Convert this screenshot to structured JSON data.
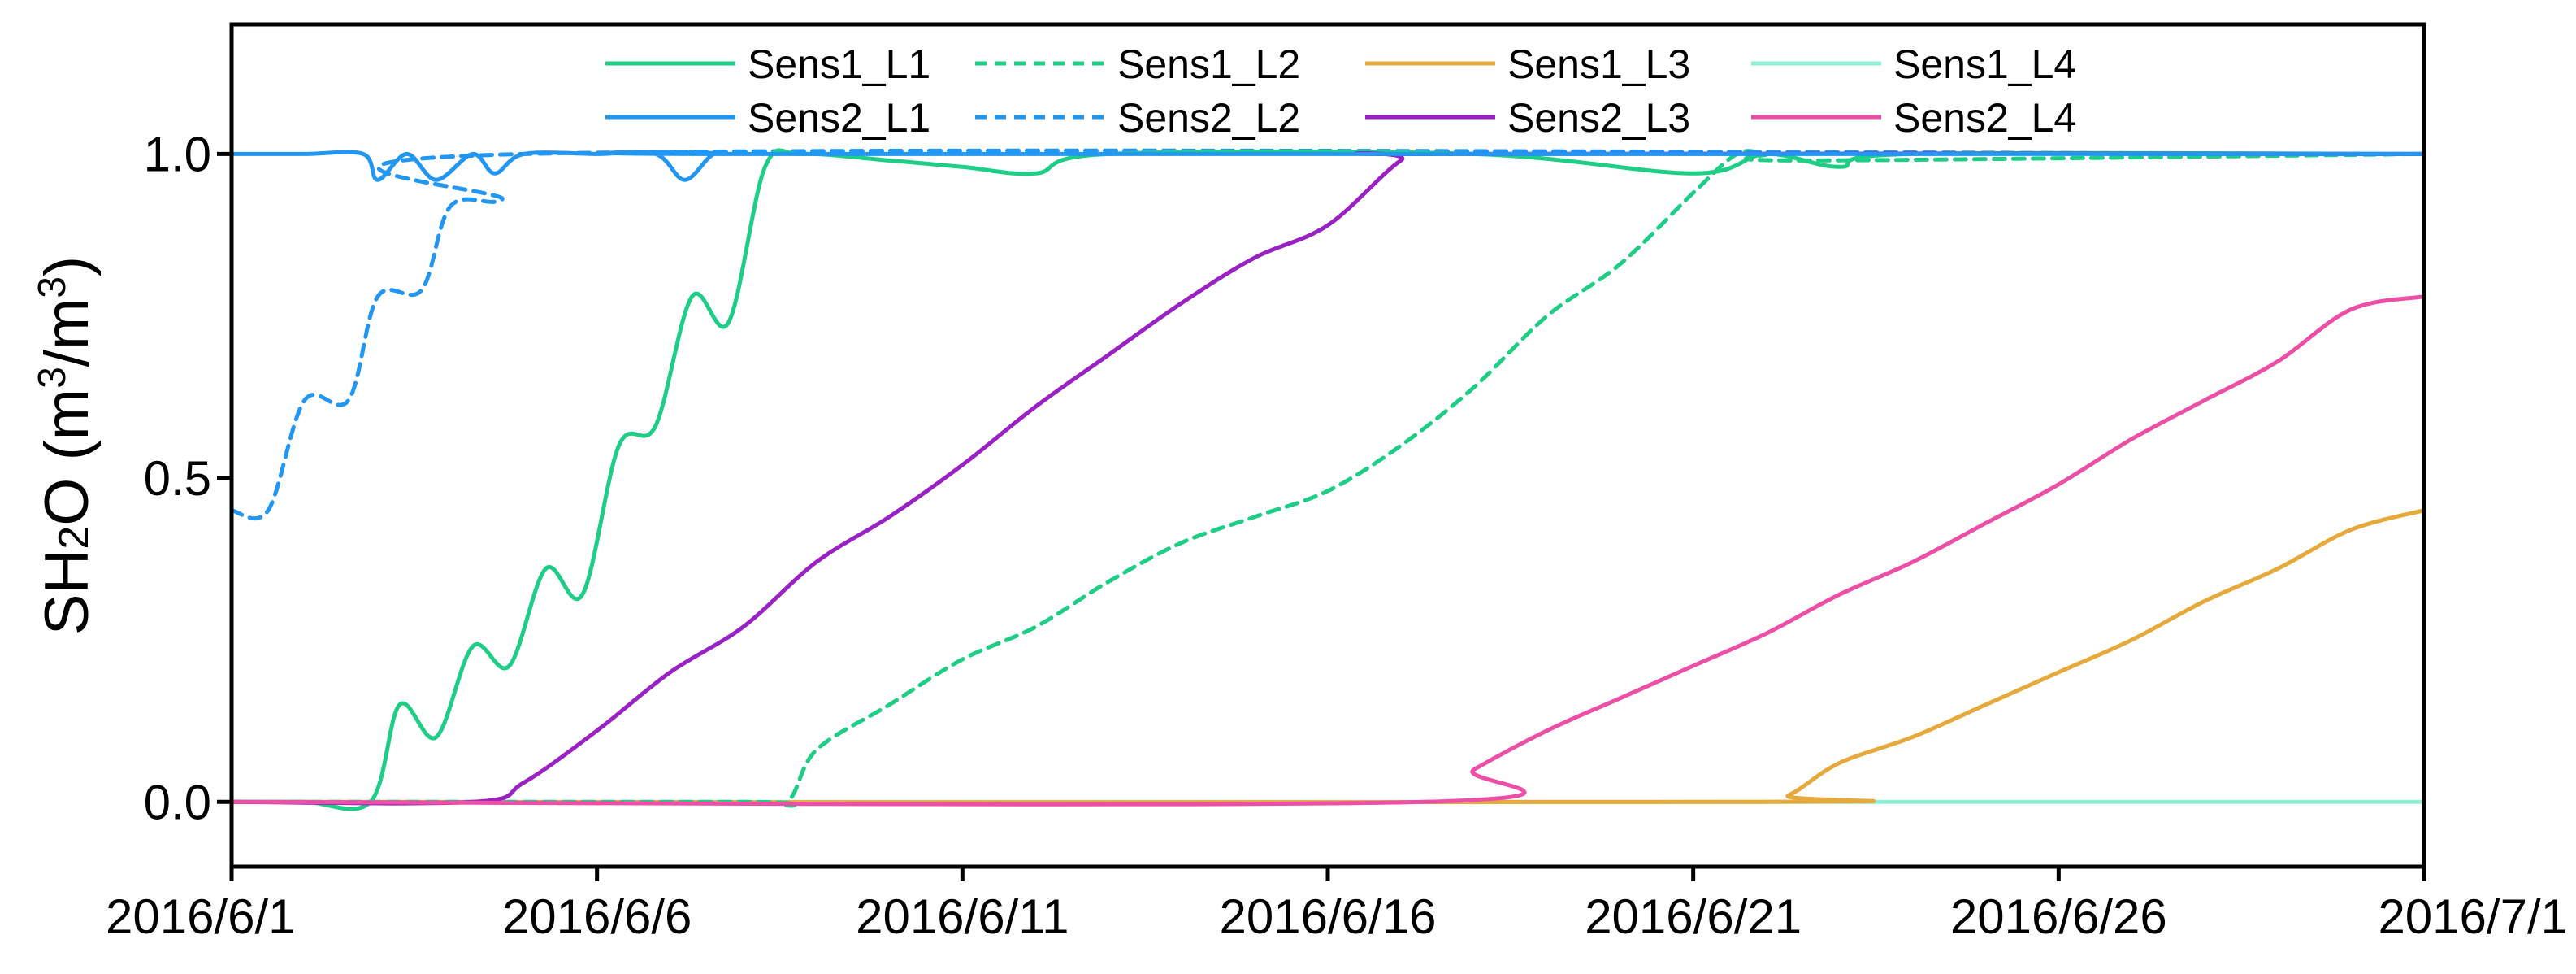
{
  "chart_data": {
    "type": "line",
    "title": "",
    "ylabel": {
      "prefix": "SH",
      "subscript": "2",
      "mid": "O (m",
      "sup1": "3",
      "mid2": "/m",
      "sup2": "3",
      "suffix": ")"
    },
    "xlabel": "",
    "x_unit": "date",
    "xlim": [
      "2016-06-01",
      "2016-07-01"
    ],
    "ylim": [
      -0.1,
      1.2
    ],
    "x_ticks": [
      "2016/6/1",
      "2016/6/6",
      "2016/6/11",
      "2016/6/16",
      "2016/6/21",
      "2016/6/26",
      "2016/7/1"
    ],
    "y_ticks": [
      "0.0",
      "0.5",
      "1.0"
    ],
    "y_tick_values": [
      0,
      0.5,
      1.0
    ],
    "grid": false,
    "legend_position": "top",
    "series": [
      {
        "name": "Sens1_L1",
        "color": "#1fce86",
        "dash": "solid",
        "x": [
          "2016-06-01",
          "2016-06-02",
          "2016-06-02.9",
          "2016-06-03.3",
          "2016-06-03.8",
          "2016-06-04.3",
          "2016-06-04.8",
          "2016-06-05.3",
          "2016-06-05.8",
          "2016-06-06.3",
          "2016-06-06.8",
          "2016-06-07.3",
          "2016-06-07.8",
          "2016-06-08.3",
          "2016-06-08.8",
          "2016-06-10",
          "2016-06-11",
          "2016-06-12",
          "2016-06-13",
          "2016-06-18",
          "2016-06-21",
          "2016-06-22",
          "2016-06-23",
          "2016-06-24",
          "2016-07-01"
        ],
        "y": [
          0,
          0,
          0,
          0.15,
          0.1,
          0.24,
          0.21,
          0.36,
          0.32,
          0.55,
          0.58,
          0.78,
          0.74,
          0.98,
          1.0,
          0.99,
          0.98,
          0.97,
          1.0,
          1.0,
          0.97,
          1.0,
          0.98,
          1.0,
          1.0
        ]
      },
      {
        "name": "Sens1_L2",
        "color": "#1fce86",
        "dash": "dash",
        "x": [
          "2016-06-01",
          "2016-06-08",
          "2016-06-08.6",
          "2016-06-09",
          "2016-06-10",
          "2016-06-11",
          "2016-06-12",
          "2016-06-13",
          "2016-06-14",
          "2016-06-15",
          "2016-06-16",
          "2016-06-17",
          "2016-06-18",
          "2016-06-19",
          "2016-06-20",
          "2016-06-21",
          "2016-06-21.6",
          "2016-06-22",
          "2016-06-22.5",
          "2016-07-01"
        ],
        "y": [
          0,
          0,
          0,
          0.08,
          0.15,
          0.22,
          0.27,
          0.34,
          0.4,
          0.44,
          0.48,
          0.55,
          0.64,
          0.75,
          0.83,
          0.94,
          1.0,
          1.0,
          0.99,
          1.0
        ]
      },
      {
        "name": "Sens1_L3",
        "color": "#e5a93c",
        "dash": "solid",
        "x": [
          "2016-06-01",
          "2016-06-21.8",
          "2016-06-22.3",
          "2016-06-23",
          "2016-06-24",
          "2016-06-25",
          "2016-06-26",
          "2016-06-27",
          "2016-06-28",
          "2016-06-29",
          "2016-06-30",
          "2016-07-01"
        ],
        "y": [
          0,
          0,
          0.01,
          0.06,
          0.1,
          0.15,
          0.2,
          0.25,
          0.31,
          0.36,
          0.42,
          0.45
        ]
      },
      {
        "name": "Sens1_L4",
        "color": "#8ff0d6",
        "dash": "solid",
        "x": [
          "2016-06-01",
          "2016-07-01"
        ],
        "y": [
          0,
          0
        ]
      },
      {
        "name": "Sens2_L1",
        "color": "#2196f3",
        "dash": "solid",
        "x": [
          "2016-06-01",
          "2016-06-02",
          "2016-06-02.8",
          "2016-06-03",
          "2016-06-03.4",
          "2016-06-03.8",
          "2016-06-04.3",
          "2016-06-04.6",
          "2016-06-05",
          "2016-06-06",
          "2016-06-06.8",
          "2016-06-07.2",
          "2016-06-07.6",
          "2016-06-08",
          "2016-07-01"
        ],
        "y": [
          1.0,
          1.0,
          1.0,
          0.96,
          1.0,
          0.96,
          1.0,
          0.97,
          1.0,
          1.0,
          1.0,
          0.96,
          1.0,
          1.0,
          1.0
        ]
      },
      {
        "name": "Sens2_L2",
        "color": "#2196f3",
        "dash": "dash",
        "x": [
          "2016-06-01",
          "2016-06-01.5",
          "2016-06-02",
          "2016-06-02.6",
          "2016-06-03",
          "2016-06-03.6",
          "2016-06-04",
          "2016-06-04.7",
          "2016-06-05",
          "2016-07-01"
        ],
        "y": [
          0.45,
          0.45,
          0.62,
          0.62,
          0.78,
          0.79,
          0.92,
          0.93,
          1.0,
          1.0
        ]
      },
      {
        "name": "Sens2_L3",
        "color": "#9a22c4",
        "dash": "solid",
        "x": [
          "2016-06-01",
          "2016-06-04.3",
          "2016-06-05",
          "2016-06-06",
          "2016-06-07",
          "2016-06-08",
          "2016-06-09",
          "2016-06-10",
          "2016-06-11",
          "2016-06-12",
          "2016-06-13",
          "2016-06-14",
          "2016-06-15",
          "2016-06-16",
          "2016-06-17",
          "2016-06-17.5",
          "2016-07-01"
        ],
        "y": [
          0,
          0,
          0.03,
          0.11,
          0.2,
          0.27,
          0.37,
          0.44,
          0.52,
          0.61,
          0.69,
          0.77,
          0.84,
          0.89,
          0.99,
          1.0,
          1.0
        ]
      },
      {
        "name": "Sens2_L4",
        "color": "#ee4fa6",
        "dash": "solid",
        "x": [
          "2016-06-01",
          "2016-06-17.3",
          "2016-06-18",
          "2016-06-19",
          "2016-06-20",
          "2016-06-21",
          "2016-06-22",
          "2016-06-23",
          "2016-06-24",
          "2016-06-25",
          "2016-06-26",
          "2016-06-27",
          "2016-06-28",
          "2016-06-29",
          "2016-06-30",
          "2016-07-01"
        ],
        "y": [
          0,
          0,
          0.05,
          0.11,
          0.16,
          0.21,
          0.26,
          0.32,
          0.37,
          0.43,
          0.49,
          0.56,
          0.62,
          0.68,
          0.76,
          0.78
        ]
      }
    ]
  }
}
